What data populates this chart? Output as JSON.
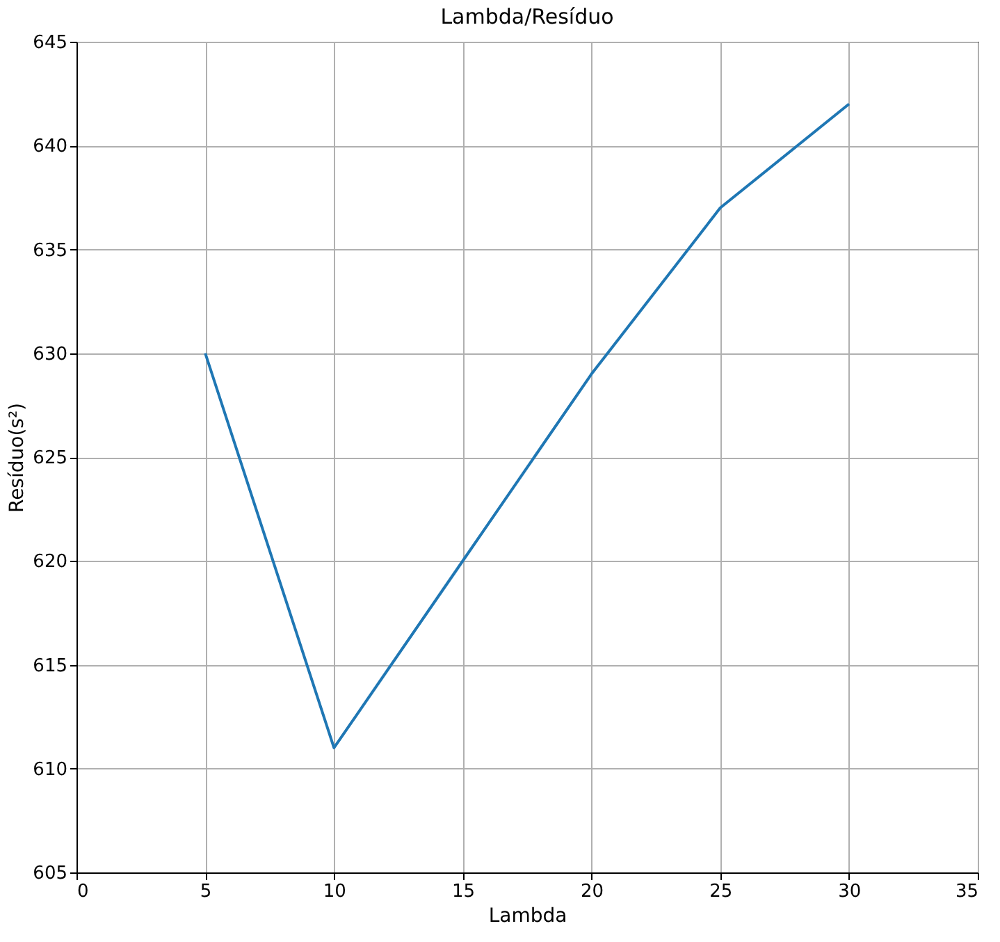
{
  "chart_data": {
    "type": "line",
    "title": "Lambda/Resíduo",
    "xlabel": "Lambda",
    "ylabel": "Resíduo(s²)",
    "x": [
      5,
      10,
      15,
      20,
      25,
      30
    ],
    "series": [
      {
        "color": "#1f77b4",
        "values": [
          630,
          611,
          620,
          629,
          637,
          642
        ]
      }
    ],
    "xlim": [
      0,
      35
    ],
    "xticks": [
      0,
      5,
      10,
      15,
      20,
      25,
      30,
      35
    ],
    "ylim": [
      605,
      645
    ],
    "yticks": [
      605,
      610,
      615,
      620,
      625,
      630,
      635,
      640,
      645
    ],
    "grid": true,
    "line_style": "solid",
    "marker": "none"
  }
}
